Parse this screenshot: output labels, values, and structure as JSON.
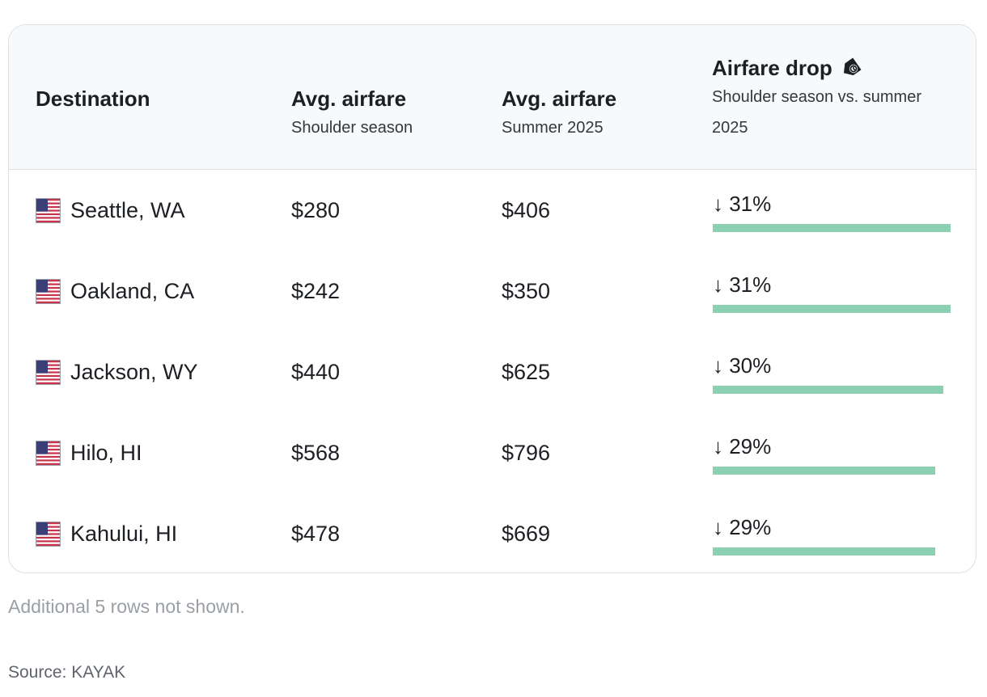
{
  "table": {
    "headers": {
      "destination": "Destination",
      "shoulder_title": "Avg. airfare",
      "shoulder_sub": "Shoulder season",
      "summer_title": "Avg. airfare",
      "summer_sub": "Summer 2025",
      "drop_title": "Airfare drop",
      "drop_sub_line1": "Shoulder season vs. summer",
      "drop_sub_line2": "2025",
      "drop_icon": "price-tag-icon"
    },
    "flag_icon": "us-flag-icon"
  },
  "chart_data": {
    "type": "table",
    "columns": [
      "Destination",
      "Avg. airfare Shoulder season",
      "Avg. airfare Summer 2025",
      "Airfare drop Shoulder season vs. summer 2025"
    ],
    "rows": [
      {
        "destination": "Seattle, WA",
        "shoulder": "$280",
        "summer": "$406",
        "drop_label": "↓ 31%",
        "drop_pct": 31
      },
      {
        "destination": "Oakland, CA",
        "shoulder": "$242",
        "summer": "$350",
        "drop_label": "↓ 31%",
        "drop_pct": 31
      },
      {
        "destination": "Jackson, WY",
        "shoulder": "$440",
        "summer": "$625",
        "drop_label": "↓ 30%",
        "drop_pct": 30
      },
      {
        "destination": "Hilo, HI",
        "shoulder": "$568",
        "summer": "$796",
        "drop_label": "↓ 29%",
        "drop_pct": 29
      },
      {
        "destination": "Kahului, HI",
        "shoulder": "$478",
        "summer": "$669",
        "drop_label": "↓ 29%",
        "drop_pct": 29
      }
    ],
    "bar_max_pct": 31,
    "bar_color": "#8dd0b1"
  },
  "footer": {
    "note": "Additional 5 rows not shown.",
    "source": "Source: KAYAK"
  }
}
